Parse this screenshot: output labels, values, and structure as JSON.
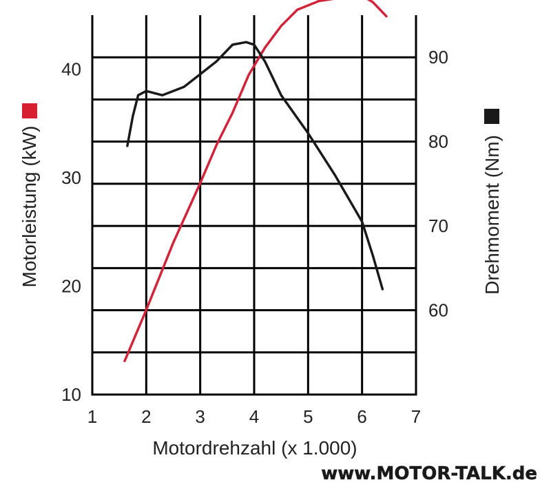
{
  "chart_data": {
    "type": "line",
    "xlabel": "Motordrehzahl (x 1.000)",
    "y_left_label": "Motorleistung (kW)",
    "y_right_label": "Drehmoment (Nm)",
    "xlim": [
      1,
      7
    ],
    "ylim_left": [
      10,
      45
    ],
    "ylim_right": [
      50,
      95
    ],
    "x_ticks": [
      "1",
      "2",
      "3",
      "4",
      "5",
      "6",
      "7"
    ],
    "y_left_ticks": [
      "10",
      "20",
      "30",
      "40"
    ],
    "y_right_ticks": [
      "60",
      "70",
      "80",
      "90"
    ],
    "grid": true,
    "series": [
      {
        "axis": "left",
        "color": "#d0243a",
        "marker_color": "#d62032",
        "x": [
          1.6,
          2.0,
          2.5,
          3.0,
          3.3,
          3.6,
          3.9,
          4.2,
          4.5,
          4.8,
          5.2,
          5.6,
          6.0,
          6.2,
          6.45
        ],
        "y": [
          13.1,
          17.8,
          24.0,
          29.5,
          33.0,
          36.0,
          39.5,
          42.0,
          44.0,
          45.5,
          46.3,
          46.6,
          46.8,
          46.2,
          44.9
        ]
      },
      {
        "axis": "right",
        "color": "#1a1a1a",
        "marker_color": "#1a1a1a",
        "x": [
          1.65,
          1.75,
          1.85,
          2.0,
          2.3,
          2.7,
          3.0,
          3.3,
          3.6,
          3.85,
          4.0,
          4.2,
          4.5,
          5.0,
          5.5,
          6.0,
          6.2,
          6.38
        ],
        "y": [
          79.5,
          83.0,
          85.5,
          86.0,
          85.5,
          86.5,
          88.0,
          89.5,
          91.5,
          91.8,
          91.5,
          89.5,
          85.5,
          81.0,
          76.0,
          70.5,
          66.5,
          62.5
        ]
      }
    ]
  },
  "watermark": "www.MOTOR-TALK.de"
}
